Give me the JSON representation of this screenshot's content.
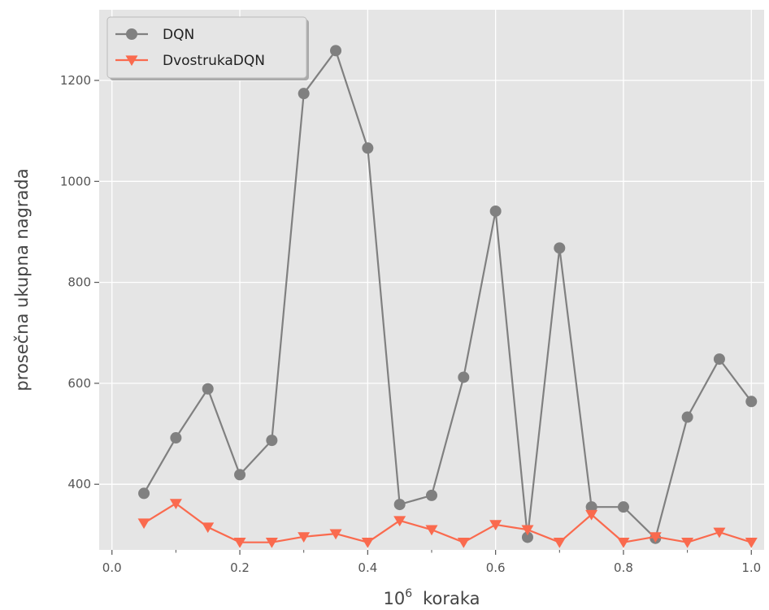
{
  "chart_data": {
    "type": "line",
    "xlabel_prefix": "10",
    "xlabel_exponent": "6",
    "xlabel_suffix": "koraka",
    "ylabel": "prosečna ukupna nagrada",
    "xlim": [
      -0.02,
      1.02
    ],
    "ylim": [
      270,
      1340
    ],
    "x_ticks": [
      0.0,
      0.2,
      0.4,
      0.6,
      0.8,
      1.0
    ],
    "x_tick_labels": [
      "0.0",
      "0.2",
      "0.4",
      "0.6",
      "0.8",
      "1.0"
    ],
    "y_ticks": [
      400,
      600,
      800,
      1000,
      1200
    ],
    "y_tick_labels": [
      "400",
      "600",
      "800",
      "1000",
      "1200"
    ],
    "x_minor_ticks": [
      0.1,
      0.3,
      0.5,
      0.7,
      0.9
    ],
    "grid": true,
    "legend_position": "top-left",
    "x": [
      0.05,
      0.1,
      0.15,
      0.2,
      0.25,
      0.3,
      0.35,
      0.4,
      0.45,
      0.5,
      0.55,
      0.6,
      0.65,
      0.7,
      0.75,
      0.8,
      0.85,
      0.9,
      0.95,
      1.0
    ],
    "series": [
      {
        "name": "DQN",
        "color": "#808080",
        "marker": "circle",
        "values": [
          382,
          492,
          589,
          419,
          487,
          1174,
          1259,
          1066,
          360,
          378,
          612,
          941,
          295,
          868,
          355,
          355,
          293,
          533,
          648,
          564
        ]
      },
      {
        "name": "DvostrukaDQN",
        "color": "#fa6a4e",
        "marker": "triangle-down",
        "values": [
          323,
          362,
          315,
          285,
          285,
          296,
          302,
          285,
          328,
          310,
          285,
          320,
          310,
          285,
          340,
          285,
          296,
          285,
          305,
          285
        ]
      }
    ]
  }
}
